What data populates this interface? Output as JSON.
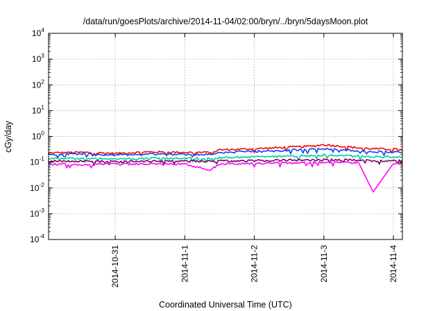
{
  "chart_data": {
    "type": "line",
    "title": "/data/run/goesPlots/archive/2014-11-04/02:00/bryn/../bryn/5daysMoon.plot",
    "xlabel": "Coordinated Universal Time (UTC)",
    "ylabel": "cGy/day",
    "x_range": [
      "2014-10-30T00:59",
      "2014-11-04T03:06"
    ],
    "x_ticks": [
      "2014-10-31",
      "2014-11-1",
      "2014-11-2",
      "2014-11-3",
      "2014-11-4"
    ],
    "y_scale": "log",
    "ylim": [
      0.0001,
      10000
    ],
    "y_ticks": [
      {
        "base": "10",
        "exp": "-4"
      },
      {
        "base": "10",
        "exp": "-3"
      },
      {
        "base": "10",
        "exp": "-2"
      },
      {
        "base": "10",
        "exp": "-1"
      },
      {
        "base": "10",
        "exp": "0"
      },
      {
        "base": "10",
        "exp": "1"
      },
      {
        "base": "10",
        "exp": "2"
      },
      {
        "base": "10",
        "exp": "3"
      },
      {
        "base": "10",
        "exp": "4"
      }
    ],
    "grid": true,
    "legend": "none",
    "series": [
      {
        "color": "#ff0000",
        "x": [
          "2014-10-30T01:00",
          "2014-10-30T12:00",
          "2014-10-31T00:00",
          "2014-10-31T12:00",
          "2014-11-01T00:00",
          "2014-11-01T09:00",
          "2014-11-01T12:00",
          "2014-11-02T00:00",
          "2014-11-02T12:00",
          "2014-11-02T20:00",
          "2014-11-03T00:00",
          "2014-11-03T12:00",
          "2014-11-03T17:00",
          "2014-11-04T00:00",
          "2014-11-04T03:00"
        ],
        "y": [
          0.23,
          0.24,
          0.22,
          0.25,
          0.24,
          0.24,
          0.3,
          0.33,
          0.38,
          0.42,
          0.48,
          0.36,
          0.33,
          0.32,
          0.3
        ]
      },
      {
        "color": "#0044ff",
        "x": [
          "2014-10-30T01:00",
          "2014-10-30T12:00",
          "2014-10-31T00:00",
          "2014-10-31T12:00",
          "2014-11-01T00:00",
          "2014-11-01T09:00",
          "2014-11-01T12:00",
          "2014-11-02T00:00",
          "2014-11-02T12:00",
          "2014-11-02T20:00",
          "2014-11-03T00:00",
          "2014-11-03T12:00",
          "2014-11-03T17:00",
          "2014-11-04T00:00",
          "2014-11-04T03:00"
        ],
        "y": [
          0.2,
          0.21,
          0.19,
          0.21,
          0.2,
          0.2,
          0.24,
          0.26,
          0.29,
          0.32,
          0.34,
          0.28,
          0.26,
          0.25,
          0.25
        ]
      },
      {
        "color": "#00cc99",
        "x": [
          "2014-10-30T01:00",
          "2014-10-30T12:00",
          "2014-10-31T00:00",
          "2014-10-31T12:00",
          "2014-11-01T00:00",
          "2014-11-01T09:00",
          "2014-11-01T12:00",
          "2014-11-02T00:00",
          "2014-11-02T12:00",
          "2014-11-02T20:00",
          "2014-11-03T00:00",
          "2014-11-03T12:00",
          "2014-11-03T17:00",
          "2014-11-04T00:00",
          "2014-11-04T03:00"
        ],
        "y": [
          0.14,
          0.14,
          0.13,
          0.14,
          0.14,
          0.14,
          0.15,
          0.16,
          0.17,
          0.18,
          0.19,
          0.17,
          0.16,
          0.16,
          0.16
        ]
      },
      {
        "color": "#7a0060",
        "x": [
          "2014-10-30T01:00",
          "2014-10-30T12:00",
          "2014-10-31T00:00",
          "2014-10-31T12:00",
          "2014-11-01T00:00",
          "2014-11-01T09:00",
          "2014-11-01T12:00",
          "2014-11-02T00:00",
          "2014-11-02T12:00",
          "2014-11-02T20:00",
          "2014-11-03T00:00",
          "2014-11-03T12:00",
          "2014-11-03T17:00",
          "2014-11-04T00:00",
          "2014-11-04T03:00"
        ],
        "y": [
          0.11,
          0.11,
          0.105,
          0.11,
          0.11,
          0.11,
          0.11,
          0.115,
          0.12,
          0.12,
          0.125,
          0.12,
          0.115,
          0.115,
          0.115
        ]
      },
      {
        "color": "#ff00ff",
        "x": [
          "2014-10-30T01:00",
          "2014-10-30T12:00",
          "2014-10-31T00:00",
          "2014-10-31T12:00",
          "2014-11-01T00:00",
          "2014-11-01T09:00",
          "2014-11-01T12:00",
          "2014-11-02T00:00",
          "2014-11-02T12:00",
          "2014-11-02T20:00",
          "2014-11-03T00:00",
          "2014-11-03T12:00",
          "2014-11-03T17:00",
          "2014-11-04T00:00",
          "2014-11-04T03:00"
        ],
        "y": [
          0.085,
          0.08,
          0.085,
          0.085,
          0.085,
          0.05,
          0.085,
          0.09,
          0.095,
          0.095,
          0.1,
          0.095,
          0.007,
          0.09,
          0.09
        ]
      }
    ]
  }
}
